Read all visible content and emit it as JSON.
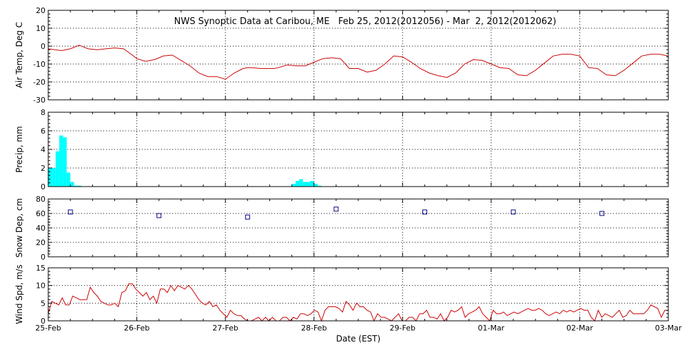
{
  "chart_data": {
    "type": "line",
    "title": "NWS Synoptic Data at Caribou, ME   Feb 25, 2012(2012056) - Mar  2, 2012(2012062)",
    "xlabel": "Date (EST)",
    "x_range_days": [
      0,
      7
    ],
    "x_tick_labels": [
      "25-Feb",
      "26-Feb",
      "27-Feb",
      "28-Feb",
      "29-Feb",
      "01-Mar",
      "02-Mar",
      "03-Mar"
    ],
    "panels": [
      {
        "id": "air-temp",
        "type": "line",
        "ylabel": "Air Temp, Deg C",
        "ylim": [
          -30,
          20
        ],
        "yticks": [
          -30,
          -20,
          -10,
          0,
          10,
          20
        ],
        "color": "#cc0000",
        "series": [
          {
            "x": [
              0,
              0.15,
              0.25,
              0.35,
              0.45,
              0.55,
              0.65,
              0.75,
              0.85,
              0.95,
              1.0,
              1.1,
              1.2,
              1.3,
              1.4,
              1.5,
              1.6,
              1.7,
              1.8,
              1.9,
              2.0,
              2.1,
              2.2,
              2.25,
              2.3,
              2.4,
              2.5,
              2.55,
              2.6,
              2.7,
              2.8,
              2.9,
              3.0,
              3.1,
              3.2,
              3.3,
              3.4,
              3.5,
              3.6,
              3.7,
              3.8,
              3.9,
              4.0,
              4.1,
              4.2,
              4.3,
              4.4,
              4.5,
              4.6,
              4.7,
              4.8,
              4.9,
              5.0,
              5.1,
              5.2,
              5.3,
              5.4,
              5.5,
              5.6,
              5.7,
              5.8,
              5.9,
              6.0,
              6.1,
              6.2,
              6.3,
              6.4,
              6.5,
              6.6,
              6.7,
              6.8,
              6.9,
              7.0
            ],
            "values": [
              -1.5,
              -2.5,
              -1.5,
              0.5,
              -1.5,
              -2,
              -1.5,
              -1.0,
              -1.5,
              -5,
              -7,
              -8.5,
              -7.5,
              -5.5,
              -5,
              -8,
              -11,
              -15,
              -17,
              -17,
              -18.5,
              -15,
              -12.5,
              -12,
              -12,
              -12.5,
              -12.5,
              -12.5,
              -12,
              -10.5,
              -11,
              -11,
              -9,
              -7,
              -6.5,
              -7,
              -12.5,
              -12.5,
              -14.5,
              -13.5,
              -10,
              -5.5,
              -6,
              -9,
              -12.5,
              -15,
              -16.5,
              -17.5,
              -15,
              -10,
              -7.5,
              -8,
              -10,
              -12,
              -12.5,
              -16,
              -16.5,
              -13.5,
              -9.5,
              -5.5,
              -4.5,
              -4.5,
              -5.5,
              -12,
              -12.5,
              -16,
              -16.5,
              -13.5,
              -9.5,
              -5.5,
              -4.5,
              -4.5,
              -5.5
            ]
          }
        ]
      },
      {
        "id": "precip",
        "type": "bar",
        "ylabel": "Precip, mm",
        "ylim": [
          0,
          8
        ],
        "yticks": [
          0,
          2,
          4,
          6,
          8
        ],
        "color": "#00ffff",
        "bin_width_days": 0.0417,
        "series": [
          {
            "x": [
              0.0,
              0.0417,
              0.0833,
              0.125,
              0.1667,
              0.2083,
              0.25,
              0.2917,
              0.3333,
              2.75,
              2.7917,
              2.8333,
              2.875,
              2.9167,
              2.9583,
              3.0,
              3.0417
            ],
            "values": [
              2.0,
              2.0,
              3.8,
              5.5,
              5.3,
              1.5,
              0.5,
              0.1,
              0.1,
              0.3,
              0.6,
              0.8,
              0.5,
              0.5,
              0.6,
              0.3,
              0.1
            ]
          }
        ]
      },
      {
        "id": "snow-depth",
        "type": "scatter",
        "ylabel": "Snow Dep, cm",
        "ylim": [
          0,
          80
        ],
        "yticks": [
          0,
          20,
          40,
          60,
          80
        ],
        "color": "#000080",
        "series": [
          {
            "x": [
              0.25,
              1.25,
              2.25,
              3.25,
              4.25,
              5.25,
              6.25
            ],
            "values": [
              62,
              57,
              55,
              66,
              62,
              62,
              60
            ]
          }
        ]
      },
      {
        "id": "wind-speed",
        "type": "line",
        "ylabel": "Wind Spd, m/s",
        "ylim": [
          0,
          15
        ],
        "yticks": [
          0,
          5,
          10,
          15
        ],
        "color": "#cc0000",
        "series": [
          {
            "values": [
              2,
              5.5,
              5,
              4.5,
              6.5,
              4.5,
              4.5,
              7,
              6.5,
              6,
              6,
              6,
              9.5,
              8,
              7,
              5.5,
              5,
              4.5,
              4.5,
              5,
              4,
              8,
              8.5,
              10.5,
              10.5,
              9,
              8,
              7,
              8,
              6,
              7,
              5,
              9,
              9,
              8,
              10,
              8.5,
              10,
              9.5,
              9,
              10,
              9,
              7.5,
              6,
              5,
              4.5,
              5.5,
              4,
              4.5,
              3,
              2,
              1,
              3,
              2,
              1.5,
              1.5,
              0.5,
              0,
              0,
              0.5,
              1,
              0,
              1,
              0,
              1,
              0,
              0,
              1,
              1,
              0,
              1,
              0.5,
              2,
              2,
              1.5,
              2,
              3,
              2.5,
              0,
              3,
              4,
              4,
              4,
              3.5,
              2.5,
              5.5,
              4.5,
              3,
              5,
              4,
              4,
              3,
              2.5,
              0,
              2,
              1,
              1,
              0.5,
              0,
              1,
              2,
              0,
              0,
              1,
              1,
              0,
              2,
              2,
              3,
              1,
              1,
              0.5,
              2,
              0,
              1,
              3,
              2.5,
              3,
              4,
              1,
              2,
              2.5,
              3,
              4,
              2,
              1,
              0,
              3,
              2,
              2,
              2.5,
              1.5,
              2,
              2.5,
              2,
              2.5,
              3,
              3.5,
              3,
              3,
              3.5,
              3,
              2,
              1.5,
              2,
              2.5,
              2,
              3,
              2.5,
              3,
              2.5,
              3,
              3.5,
              3,
              3,
              1,
              0,
              3,
              1,
              2,
              1.5,
              1,
              2,
              3,
              1,
              1.5,
              3,
              2,
              2,
              2,
              2,
              3,
              4.5,
              4,
              3.5,
              1,
              3,
              3
            ]
          }
        ]
      }
    ]
  }
}
